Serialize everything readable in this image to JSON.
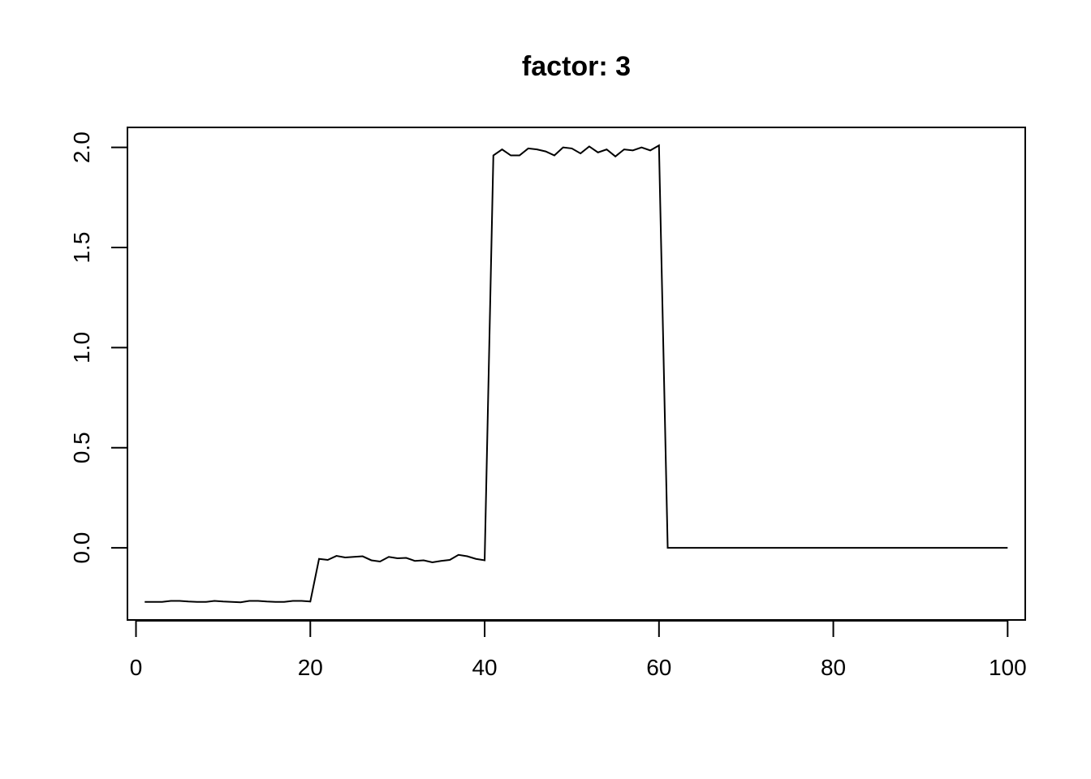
{
  "chart_data": {
    "type": "line",
    "title": "factor: 3",
    "xlabel": "",
    "ylabel": "",
    "xlim": [
      -0.98,
      102.02
    ],
    "ylim": [
      -0.36,
      2.1
    ],
    "x_ticks": [
      0,
      20,
      40,
      60,
      80,
      100
    ],
    "x_tick_labels": [
      "0",
      "20",
      "40",
      "60",
      "80",
      "100"
    ],
    "y_ticks": [
      0.0,
      0.5,
      1.0,
      1.5,
      2.0
    ],
    "y_tick_labels": [
      "0.0",
      "0.5",
      "1.0",
      "1.5",
      "2.0"
    ],
    "grid": false,
    "legend": "none",
    "line_color": "#000000",
    "series": [
      {
        "x": [
          1,
          2,
          3,
          4,
          5,
          6,
          7,
          8,
          9,
          10,
          11,
          12,
          13,
          14,
          15,
          16,
          17,
          18,
          19,
          20,
          21,
          22,
          23,
          24,
          25,
          26,
          27,
          28,
          29,
          30,
          31,
          32,
          33,
          34,
          35,
          36,
          37,
          38,
          39,
          40,
          41,
          42,
          43,
          44,
          45,
          46,
          47,
          48,
          49,
          50,
          51,
          52,
          53,
          54,
          55,
          56,
          57,
          58,
          59,
          60,
          61,
          62,
          63,
          64,
          65,
          66,
          67,
          68,
          69,
          70,
          71,
          72,
          73,
          74,
          75,
          76,
          77,
          78,
          79,
          80,
          81,
          82,
          83,
          84,
          85,
          86,
          87,
          88,
          89,
          90,
          91,
          92,
          93,
          94,
          95,
          96,
          97,
          98,
          99,
          100
        ],
        "values": [
          -0.27,
          -0.27,
          -0.27,
          -0.265,
          -0.265,
          -0.268,
          -0.27,
          -0.27,
          -0.265,
          -0.268,
          -0.27,
          -0.272,
          -0.265,
          -0.265,
          -0.268,
          -0.27,
          -0.27,
          -0.265,
          -0.265,
          -0.268,
          -0.055,
          -0.06,
          -0.04,
          -0.048,
          -0.045,
          -0.042,
          -0.062,
          -0.068,
          -0.045,
          -0.052,
          -0.05,
          -0.065,
          -0.062,
          -0.072,
          -0.065,
          -0.06,
          -0.035,
          -0.042,
          -0.055,
          -0.062,
          1.96,
          1.99,
          1.96,
          1.96,
          1.995,
          1.99,
          1.98,
          1.96,
          2.0,
          1.995,
          1.97,
          2.005,
          1.975,
          1.99,
          1.955,
          1.99,
          1.985,
          2.0,
          1.985,
          2.01,
          0.0,
          0.0,
          0.0,
          0.0,
          0.0,
          0.0,
          0.0,
          0.0,
          0.0,
          0.0,
          0.0,
          0.0,
          0.0,
          0.0,
          0.0,
          0.0,
          0.0,
          0.0,
          0.0,
          0.0,
          0.0,
          0.0,
          0.0,
          0.0,
          0.0,
          0.0,
          0.0,
          0.0,
          0.0,
          0.0,
          0.0,
          0.0,
          0.0,
          0.0,
          0.0,
          0.0,
          0.0,
          0.0,
          0.0,
          0.0
        ]
      }
    ]
  }
}
